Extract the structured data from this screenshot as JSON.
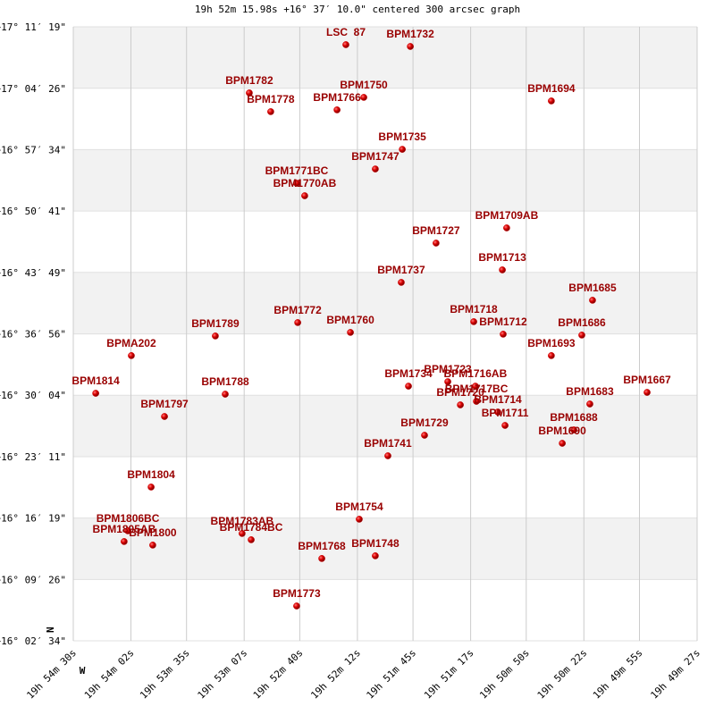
{
  "chart_data": {
    "type": "scatter",
    "title": "19h 52m 15.98s +16° 37′ 10.0\" centered 300 arcsec graph",
    "north_label": "N",
    "west_label": "W",
    "color": "#cc0000",
    "label_color": "#990000",
    "grid": true,
    "xlim": [
      3270,
      2967
    ],
    "ylim": [
      57754,
      61879
    ],
    "xticks": [
      {
        "value": 3270,
        "label": "19h 54m 30s"
      },
      {
        "value": 3242,
        "label": "19h 54m 02s"
      },
      {
        "value": 3215,
        "label": "19h 53m 35s"
      },
      {
        "value": 3187,
        "label": "19h 53m 07s"
      },
      {
        "value": 3160,
        "label": "19h 52m 40s"
      },
      {
        "value": 3132,
        "label": "19h 52m 12s"
      },
      {
        "value": 3105,
        "label": "19h 51m 45s"
      },
      {
        "value": 3077,
        "label": "19h 51m 17s"
      },
      {
        "value": 3050,
        "label": "19h 50m 50s"
      },
      {
        "value": 3022,
        "label": "19h 50m 22s"
      },
      {
        "value": 2995,
        "label": "19h 49m 55s"
      },
      {
        "value": 2967,
        "label": "19h 49m 27s"
      }
    ],
    "yticks": [
      {
        "value": 61879,
        "label": "+17° 11′ 19\""
      },
      {
        "value": 61466,
        "label": "+17° 04′ 26\""
      },
      {
        "value": 61054,
        "label": "+16° 57′ 34\""
      },
      {
        "value": 60641,
        "label": "+16° 50′ 41\""
      },
      {
        "value": 60229,
        "label": "+16° 43′ 49\""
      },
      {
        "value": 59816,
        "label": "+16° 36′ 56\""
      },
      {
        "value": 59404,
        "label": "+16° 30′ 04\""
      },
      {
        "value": 58991,
        "label": "+16° 23′ 11\""
      },
      {
        "value": 58579,
        "label": "+16° 16′ 19\""
      },
      {
        "value": 58166,
        "label": "+16° 09′ 26\""
      },
      {
        "value": 57754,
        "label": "+16° 02′ 34\""
      }
    ],
    "labels": [
      "LSC  87",
      "BPM1732",
      "BPM1782",
      "BPM1778",
      "BPM1766",
      "BPM1750",
      "BPM1694",
      "BPM1735",
      "BPM1747",
      "BPM1771BC",
      "BPM1770AB",
      "BPM1709AB",
      "BPM1727",
      "BPM1713",
      "BPM1737",
      "BPM1685",
      "BPM1772",
      "BPM1718",
      "BPM1712",
      "BPM1760",
      "BPM1686",
      "BPM1789",
      "BPMA202",
      "BPM1693",
      "BPM1734",
      "BPM1723",
      "BPM1716AB",
      "BPM1717BC",
      "BPM1720",
      "BPM1714",
      "BPM1711",
      "BPM1814",
      "BPM1788",
      "BPM1667",
      "BPM1683",
      "BPM1797",
      "BPM1688",
      "BPM1690",
      "BPM1729",
      "BPM1741",
      "BPM1804",
      "BPM1754",
      "BPM1806BC",
      "BPM1805AB",
      "BPM1800",
      "BPM1783AB",
      "BPM1784BC",
      "BPM1768",
      "BPM1748",
      "BPM1773"
    ],
    "x": [
      3137.6,
      3106.3,
      3184.5,
      3174.1,
      3141.9,
      3128.9,
      3037.8,
      3110.2,
      3123.3,
      3161.5,
      3157.6,
      3059.5,
      3093.8,
      3061.6,
      3110.7,
      3017.8,
      3161.0,
      3075.5,
      3061.2,
      3135.4,
      3023.0,
      3201.0,
      3241.8,
      3037.8,
      3107.2,
      3088.1,
      3074.7,
      3074.2,
      3082.0,
      3063.8,
      3060.3,
      3259.1,
      3196.2,
      2991.3,
      3019.1,
      3225.7,
      3026.9,
      3032.5,
      3099.4,
      3117.2,
      3232.2,
      3131.1,
      3243.5,
      3245.3,
      3231.4,
      3188.0,
      3183.6,
      3149.3,
      3123.3,
      3161.5
    ],
    "y": [
      61759,
      61747,
      61435,
      61309,
      61321,
      61405,
      61381,
      61056,
      60924,
      60828,
      60744,
      60528,
      60426,
      60246,
      60162,
      60042,
      59892,
      59898,
      59814,
      59826,
      59808,
      59802,
      59670,
      59670,
      59465,
      59495,
      59465,
      59363,
      59339,
      59291,
      59201,
      59417,
      59411,
      59423,
      59345,
      59261,
      59171,
      59081,
      59135,
      58997,
      58787,
      58571,
      58493,
      58421,
      58397,
      58475,
      58433,
      58307,
      58325,
      57988
    ]
  }
}
